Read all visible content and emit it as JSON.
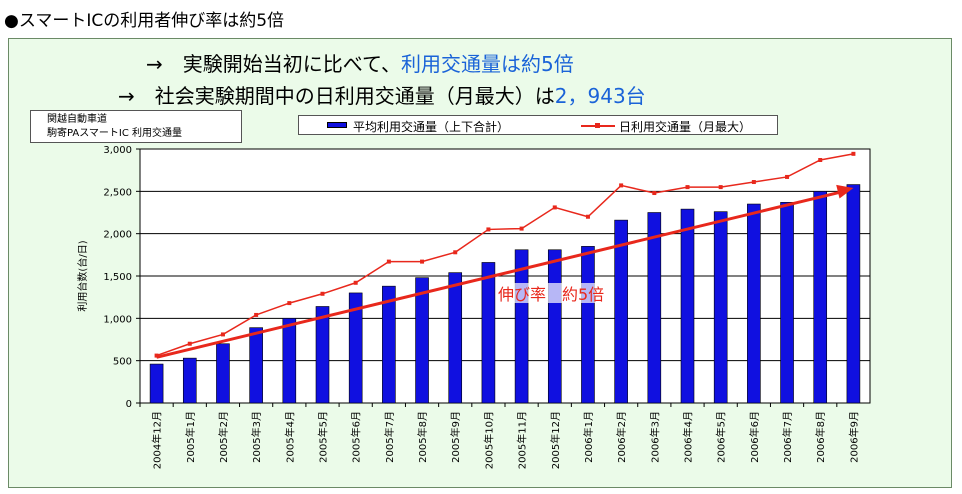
{
  "page_title": "●スマートICの利用者伸び率は約5倍",
  "headline_1": {
    "prefix": "→　実験開始当初に比べて、",
    "emphasis": "利用交通量は約5倍"
  },
  "headline_2": {
    "prefix": "→　社会実験期間中の日利用交通量（月最大）は",
    "emphasis": "2，943台"
  },
  "note": {
    "line1": "関越自動車道",
    "line2": "駒寄PAスマートIC 利用交通量"
  },
  "colors": {
    "bar": "#1010e0",
    "line": "#e8281c",
    "trend": "#e8281c",
    "panel_bg": "#ebfbe9",
    "emphasis_text": "#1a63d8"
  },
  "chart_data": {
    "type": "bar",
    "categories": [
      "2004年12月",
      "2005年1月",
      "2005年2月",
      "2005年3月",
      "2005年4月",
      "2005年5月",
      "2005年6月",
      "2005年7月",
      "2005年8月",
      "2005年9月",
      "2005年10月",
      "2005年11月",
      "2005年12月",
      "2006年1月",
      "2006年2月",
      "2006年3月",
      "2006年4月",
      "2006年5月",
      "2006年6月",
      "2006年7月",
      "2006年8月",
      "2006年9月"
    ],
    "series": [
      {
        "name": "平均利用交通量（上下合計）",
        "type": "bar",
        "values": [
          460,
          530,
          700,
          890,
          1000,
          1140,
          1300,
          1380,
          1480,
          1540,
          1660,
          1810,
          1810,
          1850,
          2160,
          2250,
          2290,
          2260,
          2350,
          2370,
          2500,
          2580
        ]
      },
      {
        "name": "日利用交通量（月最大）",
        "type": "line",
        "values": [
          560,
          700,
          810,
          1040,
          1180,
          1290,
          1420,
          1670,
          1670,
          1780,
          2050,
          2060,
          2310,
          2200,
          2570,
          2480,
          2550,
          2550,
          2610,
          2670,
          2870,
          2943
        ]
      }
    ],
    "trend_arrow": {
      "from": [
        0,
        540
      ],
      "to": [
        21,
        2540
      ]
    },
    "annotation": "伸び率　約5倍",
    "ylabel": "利用台数(台/日)",
    "ylim": [
      0,
      3000
    ],
    "yticks": [
      0,
      500,
      1000,
      1500,
      2000,
      2500,
      3000
    ],
    "ytick_labels": [
      "0",
      "500",
      "1,000",
      "1,500",
      "2,000",
      "2,500",
      "3,000"
    ],
    "grid": true,
    "legend_position": "top"
  }
}
